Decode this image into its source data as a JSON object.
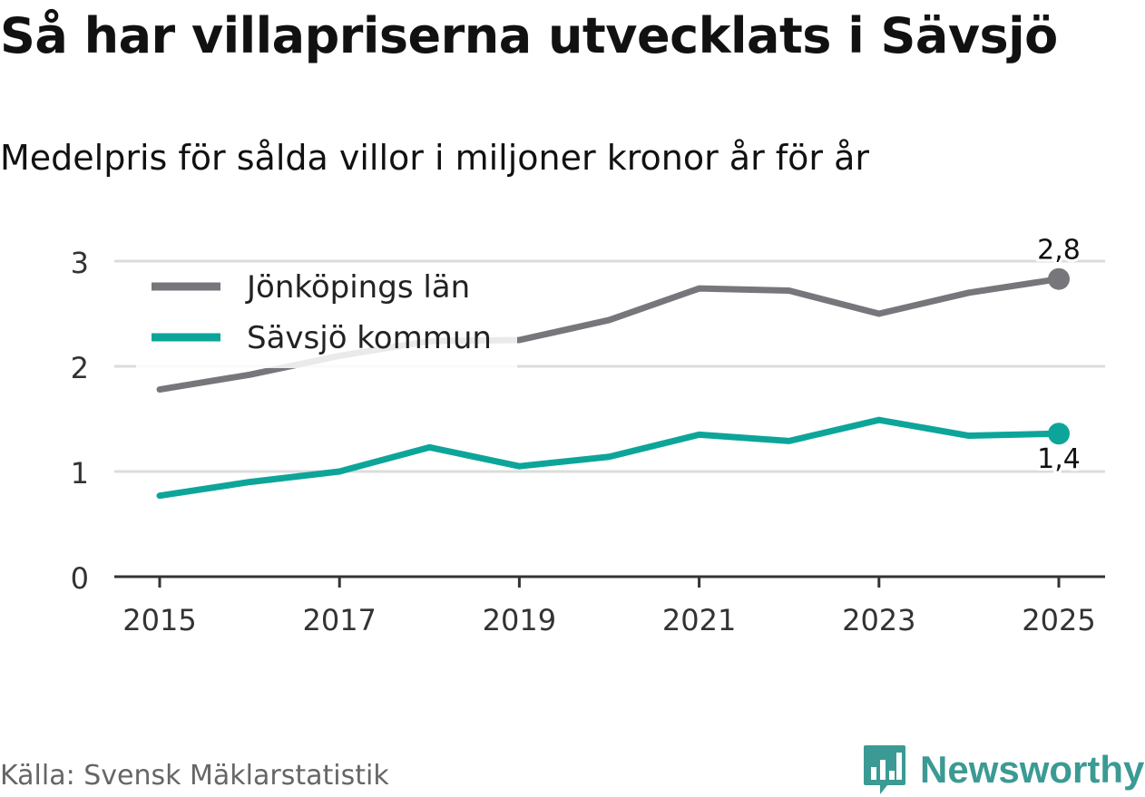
{
  "title": "Så har villapriserna utvecklats i Sävsjö",
  "subtitle": "Medelpris för sålda villor i miljoner kronor år för år",
  "source": "Källa: Svensk Mäklarstatistik",
  "logo": {
    "text": "Newsworthy",
    "icon": "bar-chart-badge-icon",
    "color": "#3b9a94"
  },
  "chart_data": {
    "type": "line",
    "title": "Så har villapriserna utvecklats i Sävsjö",
    "subtitle": "Medelpris för sålda villor i miljoner kronor år för år",
    "xlabel": "",
    "ylabel": "",
    "x": [
      2015,
      2016,
      2017,
      2018,
      2019,
      2020,
      2021,
      2022,
      2023,
      2024,
      2025
    ],
    "xticks": [
      "2015",
      "2017",
      "2019",
      "2021",
      "2023",
      "2025"
    ],
    "yticks": [
      "0",
      "1",
      "2",
      "3"
    ],
    "ylim": [
      0,
      3
    ],
    "grid": true,
    "legend": "top-left",
    "series": [
      {
        "name": "Jönköpings län",
        "color": "#77767b",
        "values": [
          1.78,
          1.92,
          2.1,
          2.24,
          2.25,
          2.44,
          2.74,
          2.72,
          2.5,
          2.7,
          2.83
        ],
        "end_label": "2,8"
      },
      {
        "name": "Sävsjö kommun",
        "color": "#0da59a",
        "values": [
          0.77,
          0.9,
          1.0,
          1.23,
          1.05,
          1.14,
          1.35,
          1.29,
          1.49,
          1.34,
          1.36
        ],
        "end_label": "1,4"
      }
    ]
  }
}
